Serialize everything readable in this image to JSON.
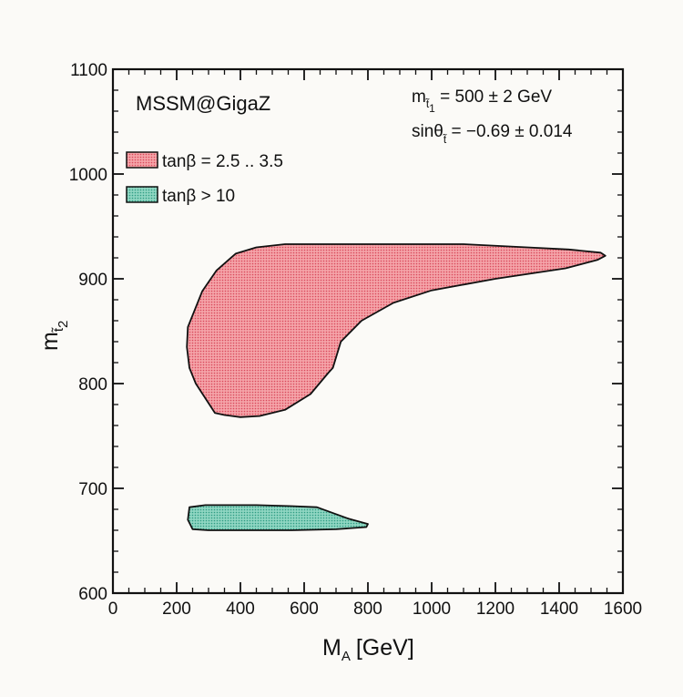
{
  "chart_data": {
    "type": "area",
    "title": "MSSM@GigaZ",
    "xlabel": "M",
    "xlabel_sub": "A",
    "xlabel_unit": "[GeV]",
    "ylabel": "m",
    "ylabel_sub": "t̃",
    "ylabel_subsub": "2",
    "xlim": [
      0,
      1600
    ],
    "ylim": [
      600,
      1100
    ],
    "x_ticks": [
      0,
      200,
      400,
      600,
      800,
      1000,
      1200,
      1400,
      1600
    ],
    "y_ticks": [
      600,
      700,
      800,
      900,
      1000,
      1100
    ],
    "x_minor_step": 50,
    "y_minor_step": 20,
    "annotations": {
      "mass": {
        "prefix": "m",
        "sub": "t̃",
        "subsub": "1",
        "text": " = 500 ± 2 GeV"
      },
      "mixing": {
        "prefix": "sinθ",
        "sub": "t̃",
        "text": " = −0.69 ± 0.014"
      }
    },
    "legend_position": "top-left",
    "series": [
      {
        "name": "tanβ = 2.5 .. 3.5",
        "color": "#f28f95",
        "points": [
          [
            235,
            854
          ],
          [
            280,
            888
          ],
          [
            325,
            908
          ],
          [
            385,
            924
          ],
          [
            450,
            930
          ],
          [
            540,
            933
          ],
          [
            800,
            933
          ],
          [
            1100,
            933
          ],
          [
            1300,
            930
          ],
          [
            1430,
            928
          ],
          [
            1530,
            925
          ],
          [
            1545,
            922
          ],
          [
            1520,
            918
          ],
          [
            1420,
            910
          ],
          [
            1200,
            900
          ],
          [
            1000,
            889
          ],
          [
            880,
            877
          ],
          [
            780,
            860
          ],
          [
            715,
            840
          ],
          [
            690,
            815
          ],
          [
            675,
            810
          ],
          [
            620,
            790
          ],
          [
            540,
            775
          ],
          [
            460,
            769
          ],
          [
            400,
            768
          ],
          [
            350,
            770
          ],
          [
            320,
            772
          ],
          [
            290,
            786
          ],
          [
            260,
            800
          ],
          [
            240,
            815
          ],
          [
            232,
            835
          ],
          [
            235,
            854
          ]
        ]
      },
      {
        "name": "tanβ > 10",
        "color": "#6fc7b1",
        "points": [
          [
            240,
            682
          ],
          [
            290,
            684
          ],
          [
            450,
            684
          ],
          [
            560,
            683
          ],
          [
            640,
            682
          ],
          [
            740,
            671
          ],
          [
            800,
            666
          ],
          [
            795,
            663
          ],
          [
            700,
            661
          ],
          [
            560,
            660
          ],
          [
            420,
            660
          ],
          [
            300,
            660
          ],
          [
            250,
            661
          ],
          [
            235,
            670
          ],
          [
            240,
            682
          ]
        ]
      }
    ]
  }
}
